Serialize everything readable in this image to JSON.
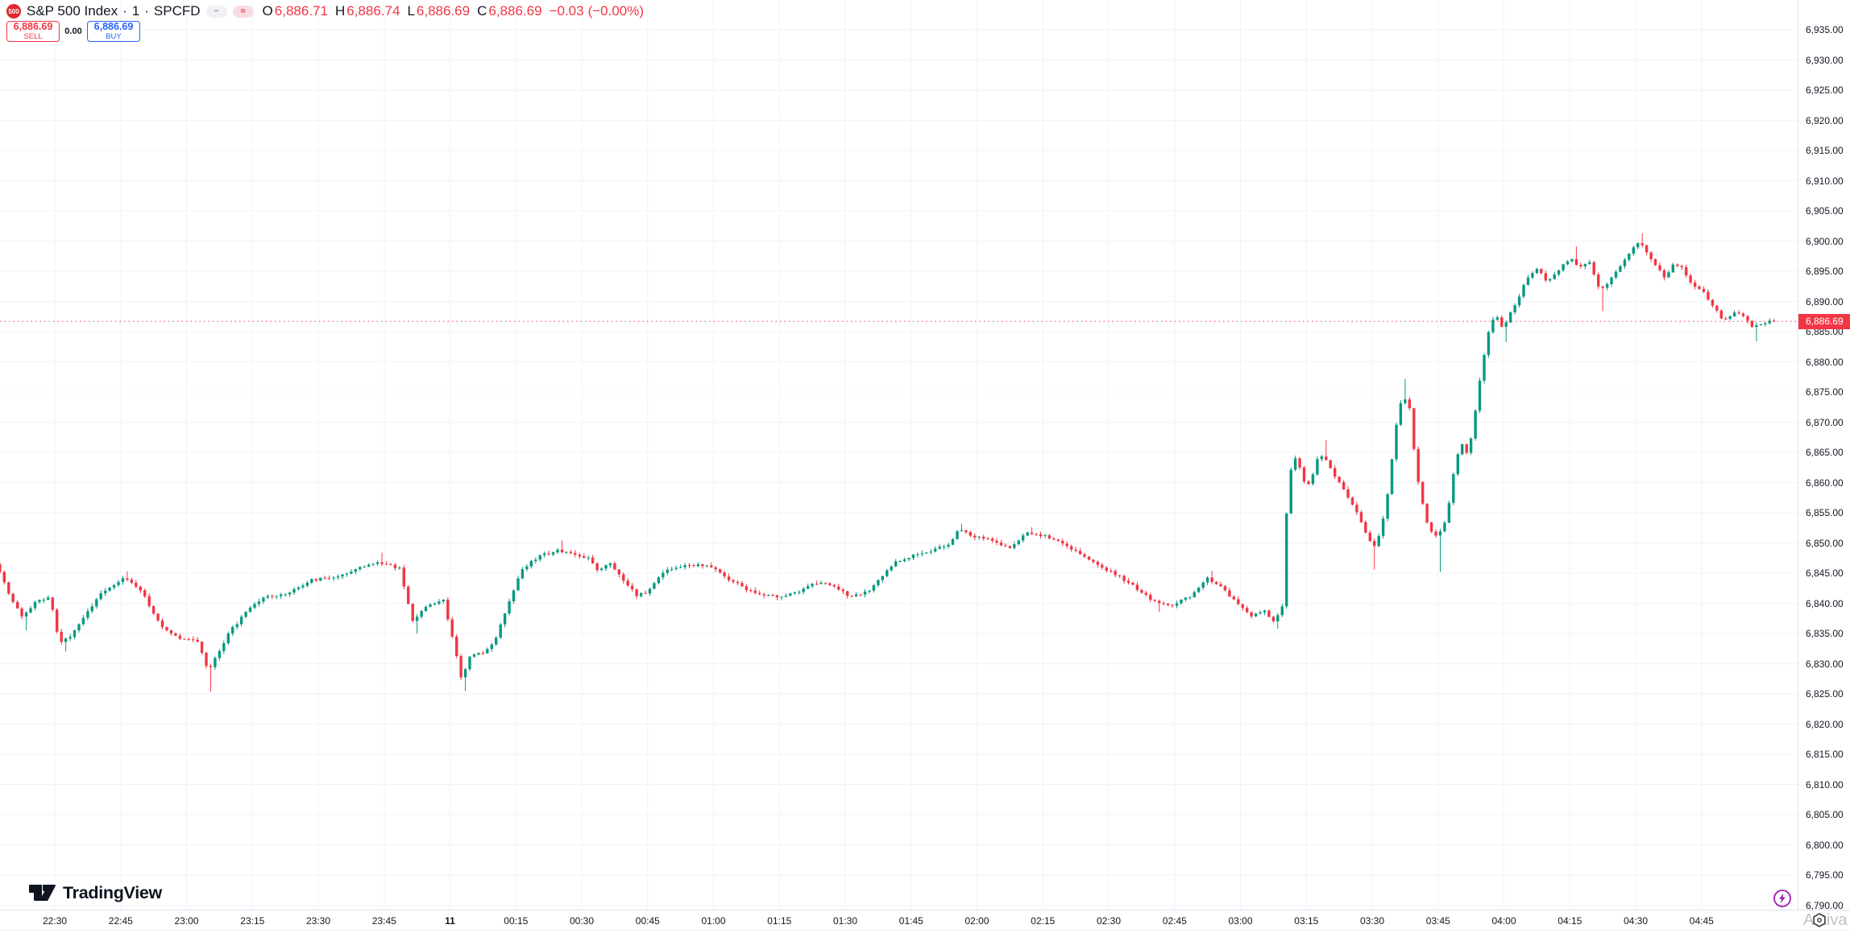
{
  "header": {
    "symbol_badge": "500",
    "symbol_name": "S&P 500 Index",
    "separator": "·",
    "interval": "1",
    "exchange": "SPCFD",
    "icons": {
      "legend_hide_glyph": "−",
      "legend_more_glyph": "≈"
    },
    "ohlc": {
      "o_label": "O",
      "o": "6,886.71",
      "h_label": "H",
      "h": "6,886.74",
      "l_label": "L",
      "l": "6,886.69",
      "c_label": "C",
      "c": "6,886.69",
      "change": "−0.03",
      "change_pct": "(−0.00%)"
    },
    "trade": {
      "sell_price": "6,886.69",
      "sell_label": "SELL",
      "spread": "0.00",
      "buy_price": "6,886.69",
      "buy_label": "BUY"
    }
  },
  "footer": {
    "logo_text": "TradingView",
    "watermark_fragment": "Activa"
  },
  "colors": {
    "up": "#089981",
    "down": "#f23645",
    "grid": "#f0f3fa",
    "axis_text": "#131722",
    "axis_border": "#e0e3eb",
    "last_price": "#f23645",
    "buy_accent": "#2962ff",
    "badge_red": "#e0282e",
    "boost_purple": "#a21caf"
  },
  "chart_data": {
    "type": "candlestick",
    "title": "S&P 500 Index, 1 minute, SPCFD",
    "interval_minutes": 1,
    "last_price": 6886.69,
    "last_price_label": "6,886.69",
    "y_axis": {
      "min": 6790,
      "max": 6935,
      "step": 5
    },
    "x_axis": {
      "labels": [
        {
          "label": "22:30",
          "t": 13
        },
        {
          "label": "22:45",
          "t": 28
        },
        {
          "label": "23:00",
          "t": 43
        },
        {
          "label": "23:15",
          "t": 58
        },
        {
          "label": "23:30",
          "t": 73
        },
        {
          "label": "23:45",
          "t": 88
        },
        {
          "label": "11",
          "t": 103,
          "bold": true
        },
        {
          "label": "00:15",
          "t": 118
        },
        {
          "label": "00:30",
          "t": 133
        },
        {
          "label": "00:45",
          "t": 148
        },
        {
          "label": "01:00",
          "t": 163
        },
        {
          "label": "01:15",
          "t": 178
        },
        {
          "label": "01:30",
          "t": 193
        },
        {
          "label": "01:45",
          "t": 208
        },
        {
          "label": "02:00",
          "t": 223
        },
        {
          "label": "02:15",
          "t": 238
        },
        {
          "label": "02:30",
          "t": 253
        },
        {
          "label": "02:45",
          "t": 268
        },
        {
          "label": "03:00",
          "t": 283
        },
        {
          "label": "03:15",
          "t": 298
        },
        {
          "label": "03:30",
          "t": 313
        },
        {
          "label": "03:45",
          "t": 328
        },
        {
          "label": "04:00",
          "t": 343
        },
        {
          "label": "04:15",
          "t": 358
        },
        {
          "label": "04:30",
          "t": 373
        },
        {
          "label": "04:45",
          "t": 388
        }
      ]
    },
    "ohlc_current": {
      "open": 6886.71,
      "high": 6886.74,
      "low": 6886.69,
      "close": 6886.69,
      "change": -0.03,
      "change_pct": 0.0
    },
    "path_waypoints": [
      [
        0,
        6846.5
      ],
      [
        2,
        6843.5
      ],
      [
        3.5,
        6841
      ],
      [
        6,
        6837.8
      ],
      [
        7.5,
        6839
      ],
      [
        9.5,
        6840.6
      ],
      [
        12.5,
        6841
      ],
      [
        14.5,
        6833.2
      ],
      [
        17,
        6834.6
      ],
      [
        20,
        6837.8
      ],
      [
        24.5,
        6842
      ],
      [
        29,
        6844.2
      ],
      [
        33,
        6842.3
      ],
      [
        37.5,
        6836.5
      ],
      [
        42,
        6834
      ],
      [
        46,
        6833.8
      ],
      [
        48.5,
        6828.7
      ],
      [
        50.5,
        6831.5
      ],
      [
        53,
        6835
      ],
      [
        57,
        6838.5
      ],
      [
        61.5,
        6841.3
      ],
      [
        66,
        6841.4
      ],
      [
        71.5,
        6843.8
      ],
      [
        77,
        6844.3
      ],
      [
        82.5,
        6845.8
      ],
      [
        87,
        6846.8
      ],
      [
        92,
        6845.8
      ],
      [
        95,
        6837.2
      ],
      [
        98,
        6839.5
      ],
      [
        102,
        6840.6
      ],
      [
        104,
        6834.5
      ],
      [
        106,
        6827.6
      ],
      [
        108.5,
        6831.8
      ],
      [
        111,
        6831.6
      ],
      [
        113.5,
        6833.5
      ],
      [
        120,
        6845.8
      ],
      [
        124,
        6847.8
      ],
      [
        128,
        6848.8
      ],
      [
        132.5,
        6848
      ],
      [
        135.5,
        6847.4
      ],
      [
        137,
        6845.6
      ],
      [
        140,
        6846.5
      ],
      [
        143.5,
        6843.4
      ],
      [
        146,
        6841.4
      ],
      [
        148,
        6841.6
      ],
      [
        153,
        6845.8
      ],
      [
        158,
        6846.4
      ],
      [
        162.5,
        6846.3
      ],
      [
        166.5,
        6844.2
      ],
      [
        172,
        6842
      ],
      [
        178.5,
        6841
      ],
      [
        182,
        6841.6
      ],
      [
        187,
        6843.4
      ],
      [
        190.5,
        6842.9
      ],
      [
        195,
        6841
      ],
      [
        199,
        6842.2
      ],
      [
        201.5,
        6844.3
      ],
      [
        205,
        6846.8
      ],
      [
        211,
        6848.4
      ],
      [
        217,
        6849.6
      ],
      [
        219.5,
        6852.3
      ],
      [
        223,
        6851
      ],
      [
        227.5,
        6850.4
      ],
      [
        231,
        6849.1
      ],
      [
        235,
        6851.7
      ],
      [
        238.5,
        6851.3
      ],
      [
        242,
        6850.3
      ],
      [
        248.5,
        6847.4
      ],
      [
        252,
        6846
      ],
      [
        258,
        6843.5
      ],
      [
        264,
        6840.2
      ],
      [
        268,
        6839.6
      ],
      [
        272,
        6841.2
      ],
      [
        276,
        6844.2
      ],
      [
        279,
        6842.8
      ],
      [
        283,
        6839.8
      ],
      [
        286,
        6837.9
      ],
      [
        289,
        6838.8
      ],
      [
        291,
        6836.9
      ],
      [
        293.2,
        6839.9
      ],
      [
        294.2,
        6858.5
      ],
      [
        295.5,
        6864.5
      ],
      [
        297,
        6862.5
      ],
      [
        298.5,
        6859
      ],
      [
        300,
        6861.5
      ],
      [
        301.5,
        6865
      ],
      [
        303.5,
        6863
      ],
      [
        305.5,
        6860.5
      ],
      [
        308,
        6857.5
      ],
      [
        310.5,
        6854.5
      ],
      [
        312.5,
        6851
      ],
      [
        314,
        6849.5
      ],
      [
        315.5,
        6852
      ],
      [
        316.8,
        6857
      ],
      [
        318,
        6864
      ],
      [
        319.5,
        6872.5
      ],
      [
        320.8,
        6874
      ],
      [
        322,
        6872.5
      ],
      [
        323.5,
        6862
      ],
      [
        325,
        6856.5
      ],
      [
        326,
        6853.5
      ],
      [
        327.5,
        6851
      ],
      [
        329,
        6851.8
      ],
      [
        330.2,
        6853.5
      ],
      [
        331.2,
        6857.5
      ],
      [
        332.4,
        6863
      ],
      [
        333.8,
        6866.5
      ],
      [
        335.2,
        6864.8
      ],
      [
        336.5,
        6869
      ],
      [
        337.5,
        6874.5
      ],
      [
        338.7,
        6880
      ],
      [
        340.1,
        6885.2
      ],
      [
        341.6,
        6888
      ],
      [
        343.1,
        6885.8
      ],
      [
        344.6,
        6887.4
      ],
      [
        347,
        6891
      ],
      [
        349.2,
        6894.4
      ],
      [
        351.4,
        6895.7
      ],
      [
        353.2,
        6893.1
      ],
      [
        355.1,
        6894.4
      ],
      [
        357.3,
        6896.2
      ],
      [
        358.8,
        6897.2
      ],
      [
        360.6,
        6895.3
      ],
      [
        362.8,
        6896.9
      ],
      [
        365.2,
        6891.9
      ],
      [
        367.6,
        6893.4
      ],
      [
        370.2,
        6896
      ],
      [
        372.4,
        6898.4
      ],
      [
        374.3,
        6900.1
      ],
      [
        376.1,
        6898.2
      ],
      [
        378.3,
        6895.8
      ],
      [
        380.2,
        6893.9
      ],
      [
        382,
        6896.2
      ],
      [
        384.2,
        6895.4
      ],
      [
        386.5,
        6892.4
      ],
      [
        388.7,
        6891.7
      ],
      [
        391.1,
        6889.1
      ],
      [
        393.5,
        6886.9
      ],
      [
        395.5,
        6887.9
      ],
      [
        397.5,
        6888.2
      ],
      [
        399.7,
        6885.9
      ],
      [
        401.4,
        6886.3
      ],
      [
        403,
        6886.5
      ],
      [
        405,
        6886.7
      ]
    ],
    "wick_spikes": [
      {
        "i": 6,
        "low": 6835.5
      },
      {
        "i": 15,
        "low": 6832
      },
      {
        "i": 29,
        "high": 6845.3
      },
      {
        "i": 48,
        "low": 6825.4
      },
      {
        "i": 87,
        "high": 6848.4
      },
      {
        "i": 95,
        "low": 6835
      },
      {
        "i": 106,
        "low": 6825.5
      },
      {
        "i": 128,
        "high": 6850.4
      },
      {
        "i": 219,
        "high": 6853.2
      },
      {
        "i": 235,
        "high": 6852.6
      },
      {
        "i": 264,
        "low": 6838.6
      },
      {
        "i": 276,
        "high": 6845.4
      },
      {
        "i": 291,
        "low": 6835.8
      },
      {
        "i": 302,
        "high": 6867
      },
      {
        "i": 313,
        "low": 6845.6
      },
      {
        "i": 320,
        "high": 6877.2
      },
      {
        "i": 328,
        "low": 6845.2
      },
      {
        "i": 343,
        "low": 6883.3
      },
      {
        "i": 359,
        "high": 6899.1
      },
      {
        "i": 365,
        "low": 6888.4
      },
      {
        "i": 374,
        "high": 6901.3
      },
      {
        "i": 400,
        "low": 6883.4
      }
    ]
  }
}
